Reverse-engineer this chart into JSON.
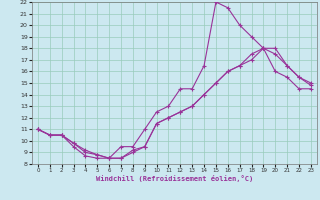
{
  "xlabel": "Windchill (Refroidissement éolien,°C)",
  "background_color": "#cce8f0",
  "grid_color": "#99ccbb",
  "line_color": "#993399",
  "xlim": [
    -0.5,
    23.5
  ],
  "ylim": [
    8,
    22
  ],
  "xticks": [
    0,
    1,
    2,
    3,
    4,
    5,
    6,
    7,
    8,
    9,
    10,
    11,
    12,
    13,
    14,
    15,
    16,
    17,
    18,
    19,
    20,
    21,
    22,
    23
  ],
  "yticks": [
    8,
    9,
    10,
    11,
    12,
    13,
    14,
    15,
    16,
    17,
    18,
    19,
    20,
    21,
    22
  ],
  "line1_x": [
    0,
    1,
    2,
    3,
    4,
    5,
    6,
    7,
    8,
    9,
    10,
    11,
    12,
    13,
    14,
    15,
    16,
    17,
    18,
    19,
    20,
    21,
    22,
    23
  ],
  "line1_y": [
    11.0,
    10.5,
    10.5,
    9.5,
    8.7,
    8.5,
    8.5,
    9.5,
    9.5,
    11.0,
    12.5,
    13.0,
    14.5,
    14.5,
    16.5,
    22.0,
    21.5,
    20.0,
    19.0,
    18.0,
    16.0,
    15.5,
    14.5,
    14.5
  ],
  "line2_x": [
    0,
    1,
    2,
    3,
    4,
    5,
    6,
    7,
    8,
    9,
    10,
    11,
    12,
    13,
    14,
    15,
    16,
    17,
    18,
    19,
    20,
    21,
    22,
    23
  ],
  "line2_y": [
    11.0,
    10.5,
    10.5,
    9.8,
    9.2,
    8.8,
    8.5,
    8.5,
    9.2,
    9.5,
    11.5,
    12.0,
    12.5,
    13.0,
    14.0,
    15.0,
    16.0,
    16.5,
    17.5,
    18.0,
    17.5,
    16.5,
    15.5,
    15.0
  ],
  "line3_x": [
    0,
    1,
    2,
    3,
    4,
    5,
    6,
    7,
    8,
    9,
    10,
    11,
    12,
    13,
    14,
    15,
    16,
    17,
    18,
    19,
    20,
    21,
    22,
    23
  ],
  "line3_y": [
    11.0,
    10.5,
    10.5,
    9.8,
    9.0,
    8.8,
    8.5,
    8.5,
    9.0,
    9.5,
    11.5,
    12.0,
    12.5,
    13.0,
    14.0,
    15.0,
    16.0,
    16.5,
    17.0,
    18.0,
    18.0,
    16.5,
    15.5,
    14.8
  ]
}
